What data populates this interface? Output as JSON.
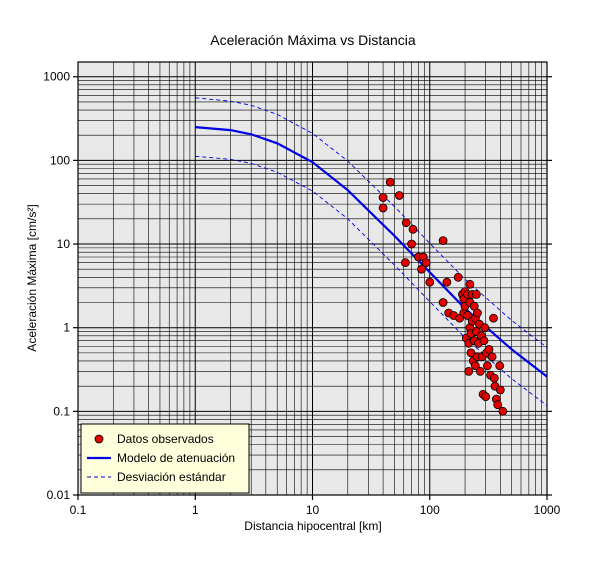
{
  "chart_data": {
    "type": "scatter",
    "title": "Aceleración Máxima vs Distancia",
    "xlabel": "Distancia hipocentral [km]",
    "ylabel": "Aceleración Máxima [cm/s²]",
    "xscale": "log",
    "yscale": "log",
    "xlim": [
      0.1,
      1000
    ],
    "ylim": [
      0.01,
      1500
    ],
    "x_ticks": [
      {
        "value": 0.1,
        "label": "0.1"
      },
      {
        "value": 1,
        "label": "1"
      },
      {
        "value": 10,
        "label": "10"
      },
      {
        "value": 100,
        "label": "100"
      },
      {
        "value": 1000,
        "label": "1000"
      }
    ],
    "y_ticks": [
      {
        "value": 0.01,
        "label": "0.01"
      },
      {
        "value": 0.1,
        "label": "0.1"
      },
      {
        "value": 1,
        "label": "1"
      },
      {
        "value": 10,
        "label": "10"
      },
      {
        "value": 100,
        "label": "100"
      },
      {
        "value": 1000,
        "label": "1000"
      }
    ],
    "grid": true,
    "legend_position": "bottom-left",
    "colors": {
      "points": "#e00000",
      "point_edge": "#000000",
      "model": "#0000e6",
      "deviation": "#0000e6",
      "plot_background": "#e8e8e8",
      "legend_background": "#ffffdc"
    },
    "series": [
      {
        "name": "Datos observados",
        "kind": "points",
        "points": [
          [
            40,
            27
          ],
          [
            40,
            36
          ],
          [
            46,
            55
          ],
          [
            55,
            38
          ],
          [
            62,
            6
          ],
          [
            63,
            18
          ],
          [
            70,
            10
          ],
          [
            72,
            15
          ],
          [
            80,
            7
          ],
          [
            85,
            5
          ],
          [
            88,
            7
          ],
          [
            93,
            6
          ],
          [
            100,
            3.5
          ],
          [
            130,
            11
          ],
          [
            130,
            2
          ],
          [
            140,
            3.5
          ],
          [
            145,
            1.5
          ],
          [
            160,
            1.4
          ],
          [
            175,
            4
          ],
          [
            180,
            1.3
          ],
          [
            190,
            2.5
          ],
          [
            195,
            2.2
          ],
          [
            195,
            1.5
          ],
          [
            200,
            2.7
          ],
          [
            200,
            1.8
          ],
          [
            205,
            0.75
          ],
          [
            210,
            2.5
          ],
          [
            210,
            1.4
          ],
          [
            215,
            0.65
          ],
          [
            215,
            0.3
          ],
          [
            220,
            3.3
          ],
          [
            220,
            2
          ],
          [
            220,
            1
          ],
          [
            225,
            0.85
          ],
          [
            225,
            0.5
          ],
          [
            230,
            2.5
          ],
          [
            230,
            1.2
          ],
          [
            235,
            0.4
          ],
          [
            240,
            1.8
          ],
          [
            240,
            0.7
          ],
          [
            245,
            1.3
          ],
          [
            245,
            0.35
          ],
          [
            250,
            2.5
          ],
          [
            250,
            0.9
          ],
          [
            255,
            1.5
          ],
          [
            255,
            0.45
          ],
          [
            260,
            0.65
          ],
          [
            265,
            1.1
          ],
          [
            270,
            0.3
          ],
          [
            275,
            0.8
          ],
          [
            280,
            0.45
          ],
          [
            285,
            0.16
          ],
          [
            290,
            0.7
          ],
          [
            295,
            1
          ],
          [
            300,
            0.15
          ],
          [
            305,
            0.5
          ],
          [
            310,
            0.35
          ],
          [
            320,
            0.55
          ],
          [
            330,
            0.27
          ],
          [
            340,
            0.45
          ],
          [
            350,
            1.3
          ],
          [
            355,
            0.25
          ],
          [
            360,
            0.2
          ],
          [
            370,
            0.14
          ],
          [
            380,
            0.12
          ],
          [
            395,
            0.35
          ],
          [
            400,
            0.18
          ],
          [
            420,
            0.1
          ]
        ]
      },
      {
        "name": "Modelo de atenuación",
        "kind": "line",
        "points": [
          [
            1,
            250
          ],
          [
            2,
            230
          ],
          [
            3,
            205
          ],
          [
            5,
            160
          ],
          [
            10,
            95
          ],
          [
            20,
            44
          ],
          [
            50,
            12.5
          ],
          [
            100,
            4.6
          ],
          [
            200,
            1.7
          ],
          [
            500,
            0.55
          ],
          [
            1000,
            0.26
          ]
        ]
      },
      {
        "name": "Desviación estándar",
        "kind": "dashed",
        "points": [
          [
            1,
            560
          ],
          [
            2,
            510
          ],
          [
            3,
            455
          ],
          [
            5,
            355
          ],
          [
            10,
            210
          ],
          [
            20,
            98
          ],
          [
            50,
            28
          ],
          [
            100,
            10.2
          ],
          [
            200,
            3.8
          ],
          [
            500,
            1.22
          ],
          [
            1000,
            0.58
          ]
        ]
      },
      {
        "name": "Desviación estándar",
        "kind": "dashed",
        "show_in_legend": false,
        "points": [
          [
            1,
            112
          ],
          [
            2,
            103
          ],
          [
            3,
            92
          ],
          [
            5,
            72
          ],
          [
            10,
            43
          ],
          [
            20,
            20
          ],
          [
            50,
            5.6
          ],
          [
            100,
            2.05
          ],
          [
            200,
            0.76
          ],
          [
            500,
            0.245
          ],
          [
            1000,
            0.117
          ]
        ]
      }
    ]
  }
}
